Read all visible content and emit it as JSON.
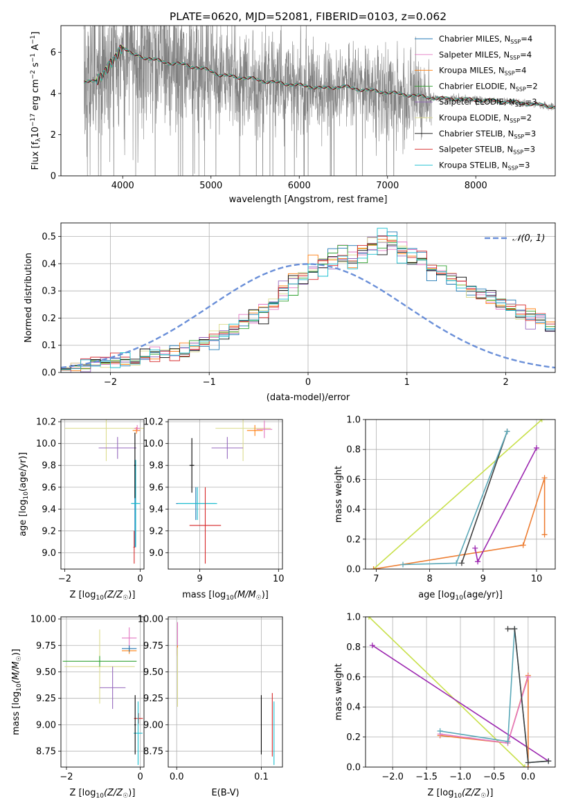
{
  "title": "PLATE=0620, MJD=52081, FIBERID=0103, z=0.062",
  "colors": {
    "observed": "#808080",
    "Chabrier MILES": "#1f77b4",
    "Salpeter MILES": "#e377c2",
    "Kroupa MILES": "#ff7f0e",
    "Chabrier ELODIE": "#2ca02c",
    "Salpeter ELODIE": "#9467bd",
    "Kroupa ELODIE": "#dbdb8d",
    "Chabrier STELIB": "#000000",
    "Salpeter STELIB": "#d62728",
    "Kroupa STELIB": "#17becf",
    "orange_line": "#ed7d31",
    "purple_line": "#9c27b0",
    "yellow_line": "#c8e04a",
    "teal_line": "#5aa8b8",
    "dark_line": "#404040",
    "normal": "#6a8fd8",
    "grid": "#b0b0b0"
  },
  "chart_data": [
    {
      "id": "spectrum",
      "type": "line",
      "xlabel": "wavelength [Angstrom, rest frame]",
      "ylabel": "Flux [f_λ 10^-17 erg cm^-2 s^-1 A^-1]",
      "xlim": [
        3300,
        8900
      ],
      "ylim": [
        0,
        7.3
      ],
      "xticks": [
        4000,
        5000,
        6000,
        7000,
        8000
      ],
      "yticks": [
        0,
        2,
        4,
        6
      ],
      "grid": false,
      "legend_position": "top-right",
      "series": [
        {
          "name": "Chabrier MILES, N_SSP=4",
          "color": "#1f77b4"
        },
        {
          "name": "Salpeter MILES, N_SSP=4",
          "color": "#e377c2"
        },
        {
          "name": "Kroupa MILES, N_SSP=4",
          "color": "#ff7f0e"
        },
        {
          "name": "Chabrier ELODIE, N_SSP=2",
          "color": "#2ca02c"
        },
        {
          "name": "Salpeter ELODIE, N_SSP=3",
          "color": "#9467bd"
        },
        {
          "name": "Kroupa ELODIE, N_SSP=2",
          "color": "#dbdb8d"
        },
        {
          "name": "Chabrier STELIB, N_SSP=3",
          "color": "#000000"
        },
        {
          "name": "Salpeter STELIB, N_SSP=3",
          "color": "#d62728"
        },
        {
          "name": "Kroupa STELIB, N_SSP=3",
          "color": "#17becf"
        }
      ],
      "model_continuum": {
        "x": [
          3550,
          3650,
          3750,
          3850,
          3950,
          4000,
          4050,
          4100,
          4200,
          4300,
          4400,
          4500,
          4600,
          4700,
          4800,
          4900,
          5000,
          5100,
          5200,
          5300,
          5400,
          5500,
          5600,
          5700,
          5800,
          5900,
          6000,
          6100,
          6200,
          6300,
          6400,
          6500,
          6600,
          6700,
          6800,
          6900,
          7000,
          7100,
          7200,
          7300,
          7400,
          7500,
          7600,
          7700,
          7800,
          7900,
          8000,
          8100,
          8200,
          8300,
          8400,
          8500,
          8600,
          8700,
          8800,
          8900
        ],
        "y": [
          4.5,
          4.6,
          4.8,
          5.3,
          6.0,
          6.3,
          6.1,
          5.9,
          5.8,
          5.7,
          5.6,
          5.5,
          5.45,
          5.4,
          5.3,
          5.2,
          5.1,
          4.9,
          4.85,
          4.8,
          4.75,
          4.7,
          4.6,
          4.55,
          4.5,
          4.45,
          4.4,
          4.35,
          4.3,
          4.25,
          4.3,
          4.35,
          4.25,
          4.2,
          4.15,
          4.1,
          4.05,
          4.0,
          3.95,
          3.9,
          3.85,
          3.8,
          3.75,
          3.75,
          3.75,
          3.7,
          3.7,
          3.65,
          3.65,
          3.6,
          3.6,
          3.55,
          3.5,
          3.45,
          3.4,
          3.35
        ]
      }
    },
    {
      "id": "residuals",
      "type": "line",
      "xlabel": "(data-model)/error",
      "ylabel": "Normed distribution",
      "xlim": [
        -2.5,
        2.5
      ],
      "ylim": [
        0,
        0.55
      ],
      "xticks": [
        -2,
        -1,
        0,
        1,
        2
      ],
      "yticks": [
        0.0,
        0.1,
        0.2,
        0.3,
        0.4,
        0.5
      ],
      "grid": true,
      "legend_position": "top-right",
      "reference": {
        "name": "𝒩(0, 1)",
        "mean": 0,
        "sigma": 1
      },
      "bin_width": 0.1,
      "bin_start": -2.5,
      "histogram_typical": [
        0.015,
        0.02,
        0.025,
        0.03,
        0.035,
        0.04,
        0.045,
        0.05,
        0.06,
        0.065,
        0.07,
        0.075,
        0.08,
        0.095,
        0.11,
        0.12,
        0.14,
        0.16,
        0.185,
        0.21,
        0.23,
        0.26,
        0.3,
        0.32,
        0.35,
        0.38,
        0.4,
        0.41,
        0.43,
        0.42,
        0.45,
        0.47,
        0.48,
        0.47,
        0.44,
        0.42,
        0.41,
        0.38,
        0.36,
        0.34,
        0.33,
        0.31,
        0.29,
        0.27,
        0.26,
        0.24,
        0.22,
        0.2,
        0.185,
        0.17,
        0.155,
        0.14,
        0.12,
        0.105,
        0.095,
        0.08,
        0.07,
        0.06,
        0.05,
        0.04,
        0.035,
        0.03,
        0.025,
        0.02,
        0.015,
        0.01
      ]
    },
    {
      "id": "age_vs_Z",
      "type": "scatter",
      "xlabel": "Z [log10(Z/Z☉)]",
      "ylabel": "age  [log10(age/yr)]",
      "xlim": [
        -2.1,
        0.1
      ],
      "ylim": [
        8.85,
        10.22
      ],
      "xticks": [
        -2,
        0
      ],
      "yticks": [
        9.0,
        9.2,
        9.4,
        9.6,
        9.8,
        10.0,
        10.2
      ],
      "grid": true,
      "points": [
        {
          "series": "Kroupa ELODIE",
          "x": -0.9,
          "y": 10.14,
          "xerr": 1.1,
          "yerr": 0.3
        },
        {
          "series": "Salpeter ELODIE",
          "x": -0.6,
          "y": 9.96,
          "xerr": 0.5,
          "yerr": 0.1
        },
        {
          "series": "Kroupa MILES",
          "x": -0.1,
          "y": 10.12,
          "xerr": 0.1,
          "yerr": 0.03
        },
        {
          "series": "Salpeter MILES",
          "x": -0.08,
          "y": 10.14,
          "xerr": 0.08,
          "yerr": 0.03
        },
        {
          "series": "Chabrier MILES",
          "x": -0.14,
          "y": 9.45,
          "xerr": 0.1,
          "yerr": 0.4
        },
        {
          "series": "Kroupa STELIB",
          "x": -0.12,
          "y": 9.45,
          "xerr": 0.12,
          "yerr": 0.4
        },
        {
          "series": "Chabrier STELIB",
          "x": -0.14,
          "y": 9.8,
          "xerr": 0.02,
          "yerr": 0.3
        },
        {
          "series": "Salpeter STELIB",
          "x": -0.16,
          "y": 9.05,
          "xerr": 0.02,
          "yerr": 0.15
        }
      ]
    },
    {
      "id": "age_vs_mass",
      "type": "scatter",
      "xlabel": "mass [log10(M/M☉)]",
      "ylabel": "",
      "xlim": [
        8.6,
        10.05
      ],
      "ylim": [
        8.85,
        10.22
      ],
      "xticks": [
        9,
        10
      ],
      "yticks": [
        9.0,
        9.2,
        9.4,
        9.6,
        9.8,
        10.0,
        10.2
      ],
      "grid": true,
      "points": [
        {
          "series": "Kroupa ELODIE",
          "x": 9.55,
          "y": 10.14,
          "xerr": 0.35,
          "yerr": 0.3
        },
        {
          "series": "Salpeter ELODIE",
          "x": 9.35,
          "y": 9.96,
          "xerr": 0.2,
          "yerr": 0.1
        },
        {
          "series": "Kroupa MILES",
          "x": 9.7,
          "y": 10.12,
          "xerr": 0.1,
          "yerr": 0.05
        },
        {
          "series": "Salpeter MILES",
          "x": 9.82,
          "y": 10.13,
          "xerr": 0.1,
          "yerr": 0.08
        },
        {
          "series": "Chabrier MILES",
          "x": 8.95,
          "y": 9.45,
          "xerr": 0.25,
          "yerr": 0.15
        },
        {
          "series": "Kroupa STELIB",
          "x": 8.97,
          "y": 9.45,
          "xerr": 0.25,
          "yerr": 0.15
        },
        {
          "series": "Chabrier STELIB",
          "x": 8.9,
          "y": 9.8,
          "xerr": 0.03,
          "yerr": 0.25
        },
        {
          "series": "Salpeter STELIB",
          "x": 9.07,
          "y": 9.25,
          "xerr": 0.2,
          "yerr": 0.35
        }
      ]
    },
    {
      "id": "weight_vs_age",
      "type": "line",
      "xlabel": "age  [log10(age/yr)]",
      "ylabel": "mass weight",
      "xlim": [
        6.8,
        10.35
      ],
      "ylim": [
        0.0,
        1.0
      ],
      "xticks": [
        7,
        8,
        9,
        10
      ],
      "yticks": [
        0.0,
        0.2,
        0.4,
        0.6,
        0.8,
        1.0
      ],
      "grid": true,
      "lines": [
        {
          "color": "#c8e04a",
          "x": [
            6.95,
            10.1
          ],
          "y": [
            0.0,
            1.0
          ]
        },
        {
          "color": "#ed7d31",
          "x": [
            6.95,
            9.75,
            10.15,
            10.15
          ],
          "y": [
            0.0,
            0.16,
            0.61,
            0.23
          ]
        },
        {
          "color": "#9c27b0",
          "x": [
            8.85,
            8.9,
            10.0
          ],
          "y": [
            0.14,
            0.05,
            0.81
          ]
        },
        {
          "color": "#404040",
          "x": [
            8.6,
            9.45
          ],
          "y": [
            0.04,
            0.92
          ]
        },
        {
          "color": "#5aa8b8",
          "x": [
            7.5,
            8.5,
            9.45
          ],
          "y": [
            0.03,
            0.04,
            0.92
          ]
        }
      ]
    },
    {
      "id": "mass_vs_Z",
      "type": "scatter",
      "xlabel": "Z [log10(Z/Z☉)]",
      "ylabel": "mass [log10(M/M☉)]",
      "xlim": [
        -2.15,
        0.1
      ],
      "ylim": [
        8.6,
        10.02
      ],
      "xticks": [
        -2,
        0
      ],
      "yticks": [
        8.75,
        9.0,
        9.25,
        9.5,
        9.75,
        10.0
      ],
      "grid": true,
      "points": [
        {
          "series": "Kroupa ELODIE",
          "x": -1.1,
          "y": 9.55,
          "xerr": 0.95,
          "yerr": 0.35
        },
        {
          "series": "Chabrier ELODIE",
          "x": -1.1,
          "y": 9.6,
          "xerr": 1.0,
          "yerr": 0.05
        },
        {
          "series": "Salpeter ELODIE",
          "x": -0.75,
          "y": 9.35,
          "xerr": 0.35,
          "yerr": 0.2
        },
        {
          "series": "Salpeter MILES",
          "x": -0.3,
          "y": 9.82,
          "xerr": 0.2,
          "yerr": 0.1
        },
        {
          "series": "Kroupa MILES",
          "x": -0.3,
          "y": 9.7,
          "xerr": 0.2,
          "yerr": 0.03
        },
        {
          "series": "Chabrier MILES",
          "x": -0.3,
          "y": 9.72,
          "xerr": 0.2,
          "yerr": 0.03
        },
        {
          "series": "Salpeter STELIB",
          "x": -0.05,
          "y": 9.06,
          "xerr": 0.12,
          "yerr": 0.05
        },
        {
          "series": "Kroupa STELIB",
          "x": -0.06,
          "y": 8.92,
          "xerr": 0.12,
          "yerr": 0.3
        },
        {
          "series": "Chabrier STELIB",
          "x": -0.14,
          "y": 9.0,
          "xerr": 0.02,
          "yerr": 0.28
        }
      ]
    },
    {
      "id": "mass_vs_ebv",
      "type": "scatter",
      "xlabel": "E(B-V)",
      "ylabel": "",
      "xlim": [
        -0.01,
        0.125
      ],
      "ylim": [
        8.6,
        10.02
      ],
      "xticks": [
        0.0,
        0.1
      ],
      "yticks": [
        8.75,
        9.0,
        9.25,
        9.5,
        9.75,
        10.0
      ],
      "grid": true,
      "points": [
        {
          "series": "Salpeter MILES",
          "x": 0.001,
          "y": 9.82,
          "xerr": 0,
          "yerr": 0.15
        },
        {
          "series": "Kroupa MILES",
          "x": 0.001,
          "y": 9.7,
          "xerr": 0,
          "yerr": 0.05
        },
        {
          "series": "Kroupa ELODIE",
          "x": 0.001,
          "y": 9.45,
          "xerr": 0,
          "yerr": 0.28
        },
        {
          "series": "Chabrier STELIB",
          "x": 0.1,
          "y": 9.0,
          "xerr": 0,
          "yerr": 0.28
        },
        {
          "series": "Salpeter STELIB",
          "x": 0.113,
          "y": 9.0,
          "xerr": 0,
          "yerr": 0.3
        },
        {
          "series": "Kroupa STELIB",
          "x": 0.115,
          "y": 8.92,
          "xerr": 0,
          "yerr": 0.3
        }
      ]
    },
    {
      "id": "weight_vs_Z",
      "type": "line",
      "xlabel": "Z [log10(Z/Z☉)]",
      "ylabel": "mass weight",
      "xlim": [
        -2.4,
        0.4
      ],
      "ylim": [
        0.0,
        1.0
      ],
      "xticks": [
        -2.0,
        -1.5,
        -1.0,
        -0.5,
        0.0
      ],
      "yticks": [
        0.0,
        0.2,
        0.4,
        0.6,
        0.8,
        1.0
      ],
      "grid": true,
      "lines": [
        {
          "color": "#c8e04a",
          "x": [
            -2.35,
            -0.05
          ],
          "y": [
            1.0,
            0.0
          ]
        },
        {
          "color": "#9c27b0",
          "x": [
            -2.3,
            0.3
          ],
          "y": [
            0.81,
            0.04
          ]
        },
        {
          "color": "#ed7d31",
          "x": [
            -1.3,
            -0.3,
            0.0,
            0.0
          ],
          "y": [
            0.21,
            0.16,
            0.61,
            0.0
          ]
        },
        {
          "color": "#e377c2",
          "x": [
            -1.3,
            -0.3,
            0.0
          ],
          "y": [
            0.22,
            0.16,
            0.6
          ]
        },
        {
          "color": "#5aa8b8",
          "x": [
            -1.3,
            -0.3,
            -0.2,
            0.0,
            0.3
          ],
          "y": [
            0.24,
            0.17,
            0.92,
            0.03,
            0.04
          ]
        },
        {
          "color": "#404040",
          "x": [
            -0.3,
            -0.2,
            0.0,
            0.3
          ],
          "y": [
            0.92,
            0.92,
            0.03,
            0.04
          ]
        }
      ]
    }
  ]
}
